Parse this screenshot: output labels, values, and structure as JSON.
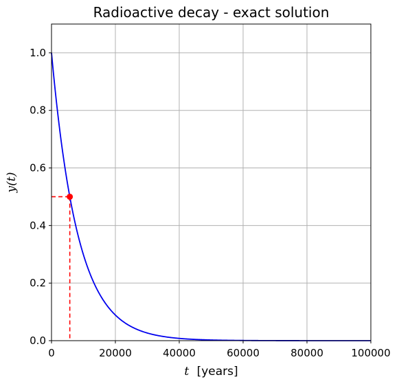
{
  "colors": {
    "curve": "#0000ee",
    "marker": "#ff0000",
    "grid": "#b0b0b0",
    "axes": "#000000"
  },
  "chart_data": {
    "type": "line",
    "title": "Radioactive decay - exact solution",
    "xlabel_var": "t",
    "xlabel_unit": "[years]",
    "ylabel_text": "y(t)",
    "xlim": [
      0,
      100000
    ],
    "ylim": [
      0,
      1.1
    ],
    "grid": true,
    "x_ticks": [
      0,
      20000,
      40000,
      60000,
      80000,
      100000
    ],
    "x_tick_labels": [
      "0",
      "20000",
      "40000",
      "60000",
      "80000",
      "100000"
    ],
    "y_ticks": [
      0.0,
      0.2,
      0.4,
      0.6,
      0.8,
      1.0
    ],
    "y_tick_labels": [
      "0.0",
      "0.2",
      "0.4",
      "0.6",
      "0.8",
      "1.0"
    ],
    "series": [
      {
        "function": "exp(-t*ln(2)/5730)",
        "half_life": 5730,
        "x_start": 0,
        "x_end": 100000
      }
    ],
    "half_life_marker": {
      "x": 5730,
      "y": 0.5
    }
  }
}
